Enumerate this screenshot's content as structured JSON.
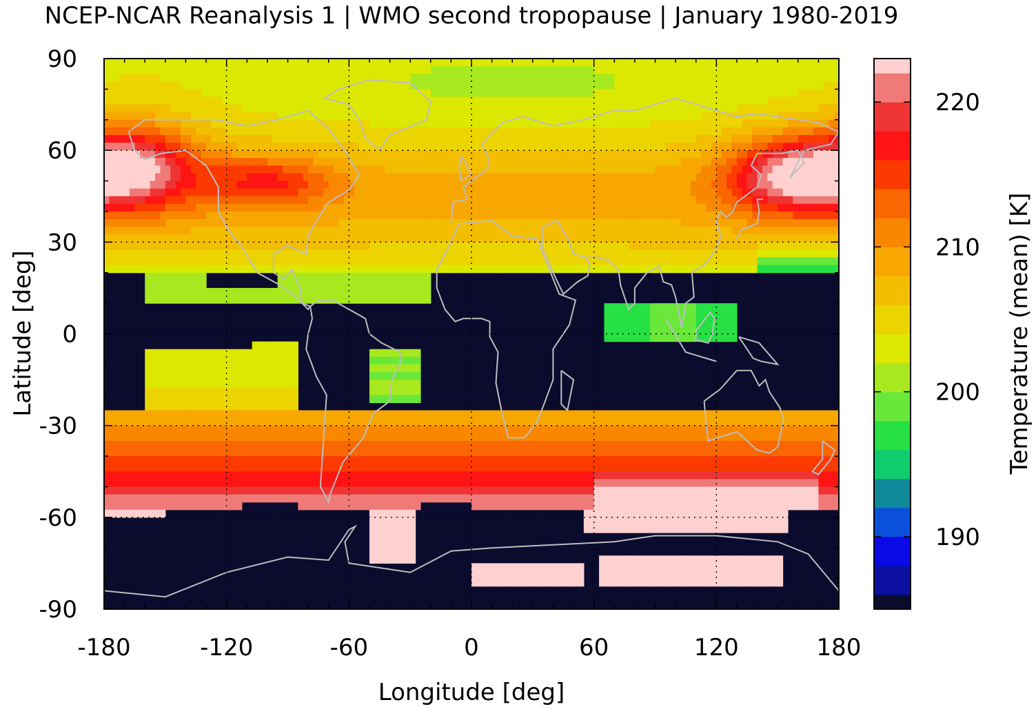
{
  "chart_data": {
    "type": "heatmap",
    "title": "NCEP-NCAR Reanalysis 1 | WMO second tropopause | January 1980-2019",
    "xlabel": "Longitude [deg]",
    "ylabel": "Latitude [deg]",
    "colorbar_label": "Temperature (mean) [K]",
    "xlim": [
      -180,
      180
    ],
    "ylim": [
      -90,
      90
    ],
    "x_ticks": [
      "-180",
      "-120",
      "-60",
      "0",
      "60",
      "120",
      "180"
    ],
    "y_ticks": [
      "90",
      "60",
      "30",
      "0",
      "-30",
      "-60",
      "-90"
    ],
    "colorbar_ticks": [
      "220",
      "210",
      "200",
      "190"
    ],
    "colorbar_range": [
      185,
      223
    ],
    "grid": "dotted",
    "coastlines": true,
    "missing_color": "#0b0b2e",
    "colormap": [
      "#0b0b2e",
      "#0b10a0",
      "#0a0ae6",
      "#0a50dc",
      "#10899b",
      "#10cc6e",
      "#26e044",
      "#6ae83a",
      "#a8e81e",
      "#dde800",
      "#ecd400",
      "#f3bd00",
      "#f7a700",
      "#f98800",
      "#fa6600",
      "#fc3a00",
      "#ff1414",
      "#ef3434",
      "#f07a78",
      "#ffd0d0"
    ],
    "field_description": [
      {
        "lat_range": [
          20,
          90
        ],
        "pattern": "warm 215-222 K near 60N over Pacific and Siberia, ~203-205 K over Arctic"
      },
      {
        "lat_range": [
          -25,
          20
        ],
        "pattern": "mostly missing; ~200-202 K patches over Atlantic, South America, Indian Ocean"
      },
      {
        "lat_range": [
          -50,
          -25
        ],
        "pattern": "208-215 K zonal band"
      },
      {
        "lat_range": [
          -60,
          -50
        ],
        "pattern": "218-223 K"
      },
      {
        "lat_range": [
          -90,
          -60
        ],
        "pattern": "mostly missing; >222 K patches over Antarctica"
      }
    ]
  }
}
